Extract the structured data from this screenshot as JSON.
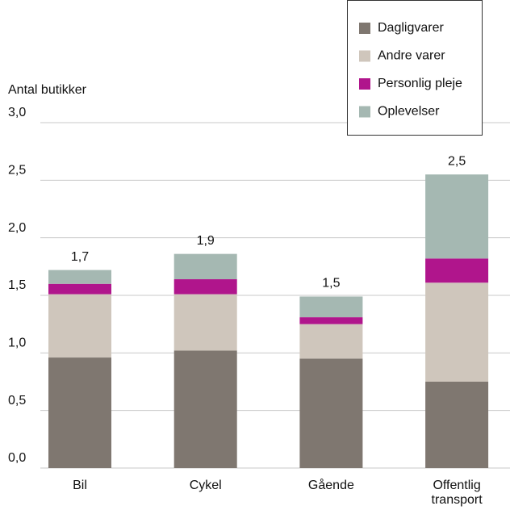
{
  "chart_data": {
    "type": "stacked_bar",
    "y_label": "Antal butikker",
    "categories": [
      "Bil",
      "Cykel",
      "Gående",
      "Offentlig transport"
    ],
    "series": [
      {
        "name": "Dagligvarer",
        "color": "#7f7770",
        "values": [
          0.96,
          1.02,
          0.95,
          0.75
        ]
      },
      {
        "name": "Andre varer",
        "color": "#cfc6bc",
        "values": [
          0.55,
          0.49,
          0.3,
          0.86
        ]
      },
      {
        "name": "Personlig pleje",
        "color": "#b0158c",
        "values": [
          0.09,
          0.13,
          0.06,
          0.21
        ]
      },
      {
        "name": "Oplevelser",
        "color": "#a5b8b2",
        "values": [
          0.12,
          0.22,
          0.18,
          0.73
        ]
      }
    ],
    "totals": [
      1.72,
      1.86,
      1.49,
      2.55
    ],
    "total_labels": [
      "1,7",
      "1,9",
      "1,5",
      "2,5"
    ],
    "ylim": [
      0,
      3
    ],
    "yticks": [
      {
        "value": 0,
        "label": "0,0"
      },
      {
        "value": 0.5,
        "label": "0,5"
      },
      {
        "value": 1,
        "label": "1,0"
      },
      {
        "value": 1.5,
        "label": "1,5"
      },
      {
        "value": 2,
        "label": "2,0"
      },
      {
        "value": 2.5,
        "label": "2,5"
      },
      {
        "value": 3,
        "label": "3,0"
      }
    ],
    "grid": true,
    "legend": "top-right"
  }
}
